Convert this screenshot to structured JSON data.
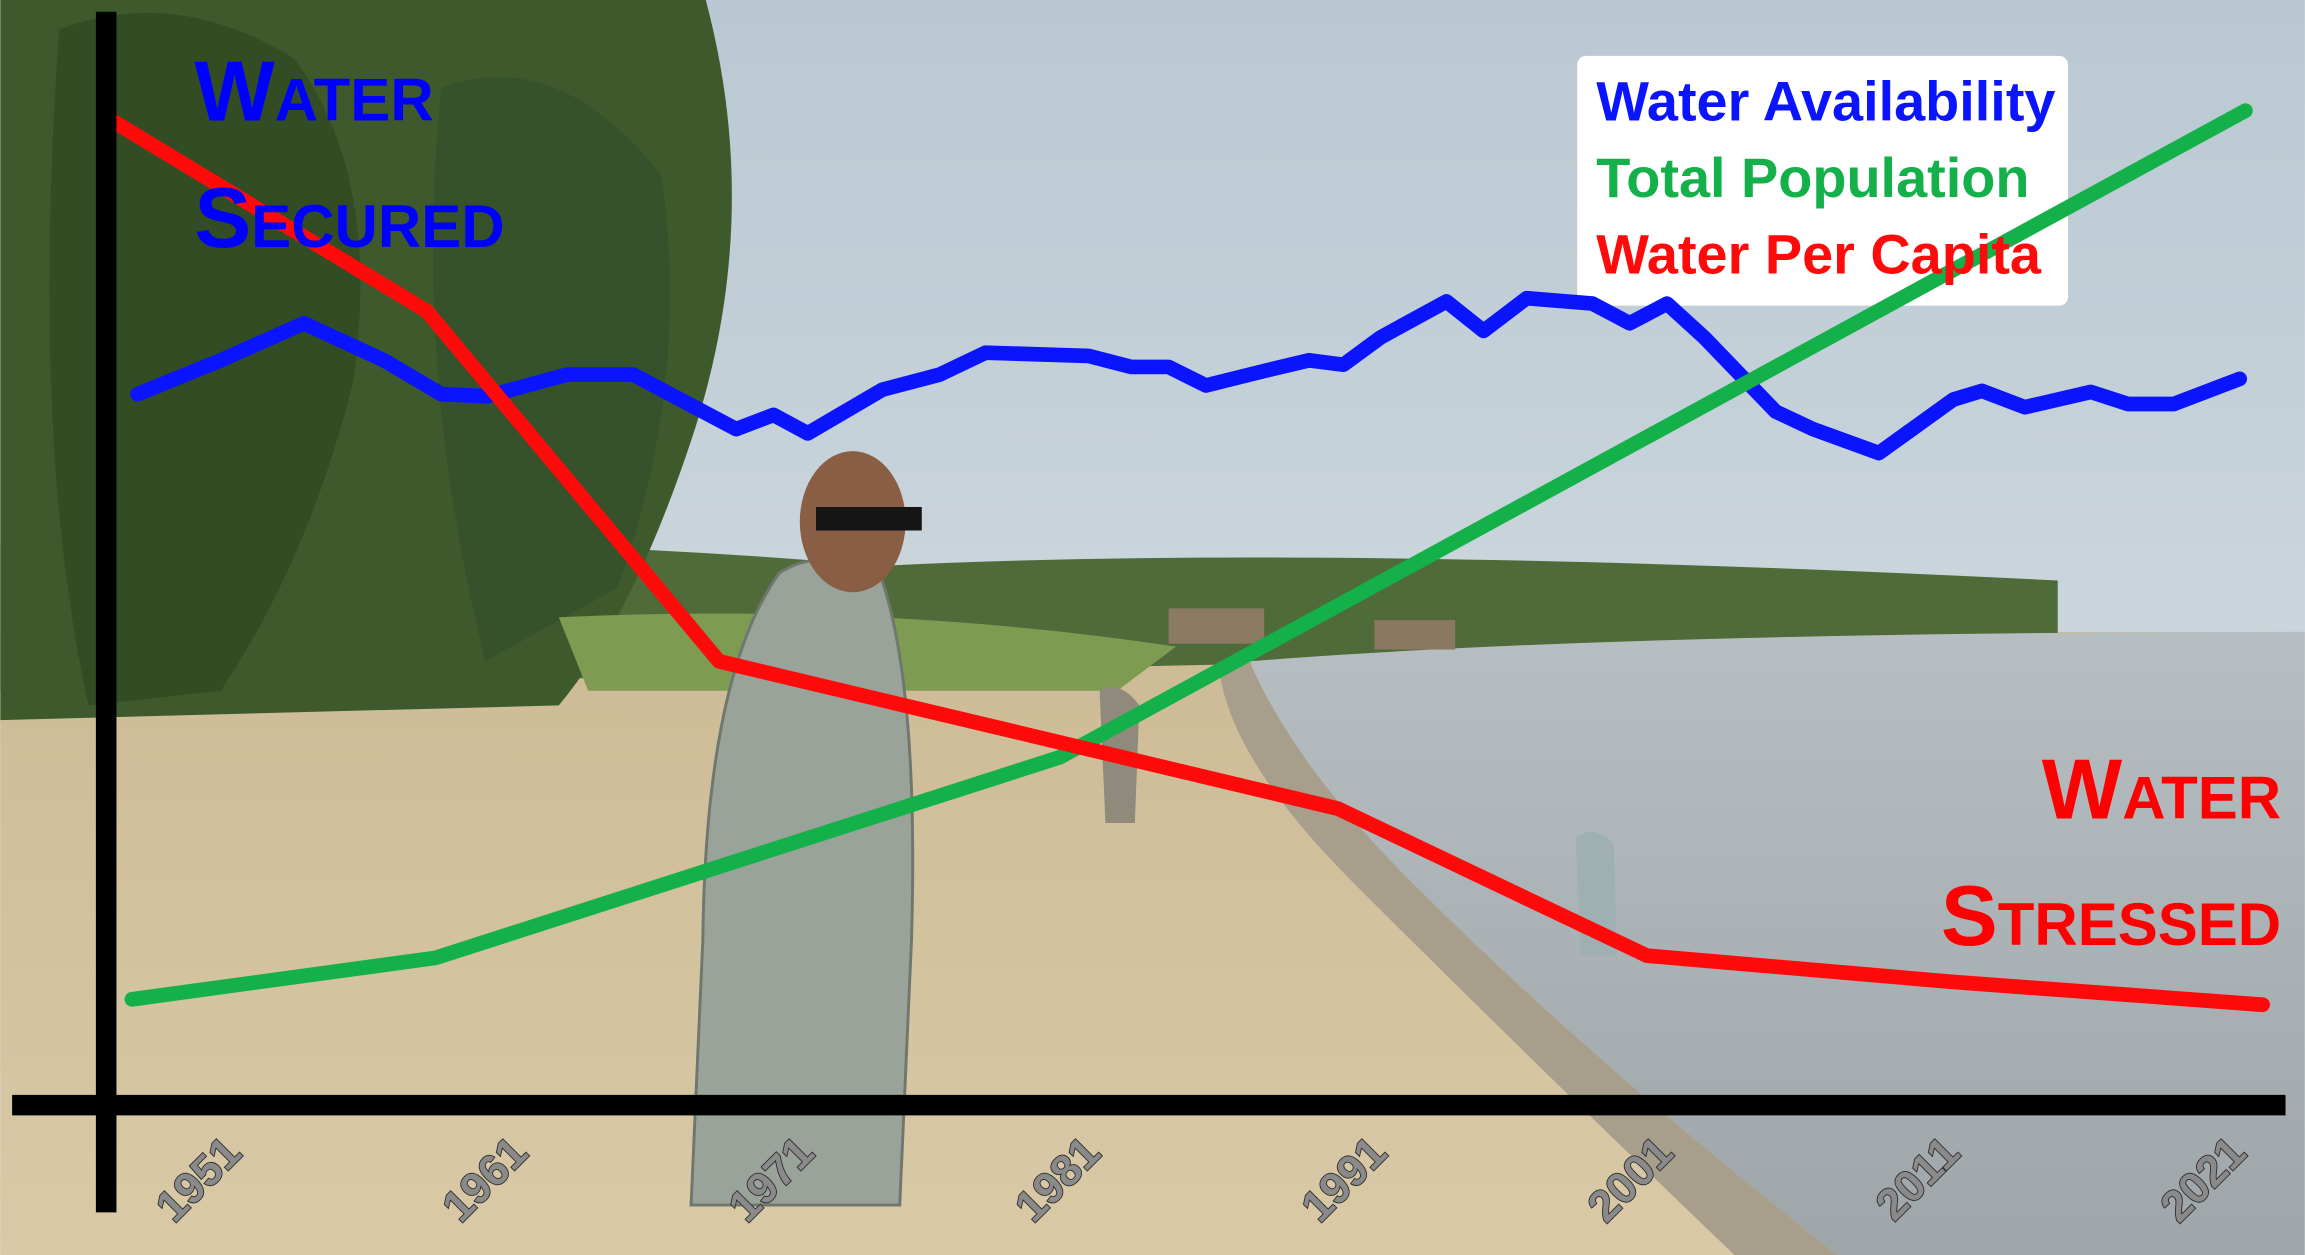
{
  "chart_data": {
    "type": "line",
    "annotations": [
      {
        "lines": [
          "Water",
          "Secured"
        ],
        "color": "#0000ff"
      },
      {
        "lines": [
          "Water",
          "Stressed"
        ],
        "color": "#ff0000"
      }
    ],
    "xlim": [
      1946.2,
      2022.3
    ],
    "xticks": [
      1951,
      1961,
      1971,
      1981,
      1991,
      2001,
      2011,
      2021
    ],
    "ylim": [
      0,
      100
    ],
    "legend": "upper right",
    "series": [
      {
        "name": "Water Availability",
        "color": "#0a14ff",
        "x": [
          1947.3,
          1950.2,
          1953.1,
          1955.9,
          1957.9,
          1959.5,
          1962.3,
          1964.6,
          1968.2,
          1969.5,
          1970.7,
          1973.3,
          1975.3,
          1976.9,
          1980.5,
          1982.0,
          1983.3,
          1984.6,
          1986.6,
          1988.2,
          1989.4,
          1990.7,
          1993.0,
          1994.3,
          1995.8,
          1998.1,
          1999.4,
          2000.7,
          2002.0,
          2004.5,
          2005.8,
          2008.1,
          2010.7,
          2011.7,
          2013.2,
          2015.5,
          2016.8,
          2018.4,
          2020.7
        ],
        "values": [
          65.2,
          68.3,
          71.7,
          68.3,
          65.2,
          65.0,
          67.0,
          67.0,
          62.0,
          63.3,
          61.6,
          65.6,
          67.0,
          69.0,
          68.7,
          67.7,
          67.7,
          66.0,
          67.3,
          68.3,
          67.9,
          70.4,
          73.7,
          71.0,
          74.0,
          73.5,
          71.7,
          73.5,
          70.4,
          63.6,
          62.0,
          59.8,
          64.7,
          65.5,
          64.0,
          65.4,
          64.3,
          64.3,
          66.6
        ]
      },
      {
        "name": "Total Population",
        "color": "#14b04a",
        "x": [
          1947.1,
          1957.7,
          1979.5,
          2020.9
        ],
        "values": [
          9.7,
          13.5,
          31.9,
          91.2
        ]
      },
      {
        "name": "Water Per Capita",
        "color": "#ff0a0a",
        "x": [
          1946.4,
          1957.4,
          1967.6,
          1989.2,
          2000.0,
          2010.7,
          2021.5
        ],
        "values": [
          90.3,
          72.8,
          40.7,
          27.2,
          13.7,
          11.3,
          9.2
        ]
      }
    ]
  }
}
